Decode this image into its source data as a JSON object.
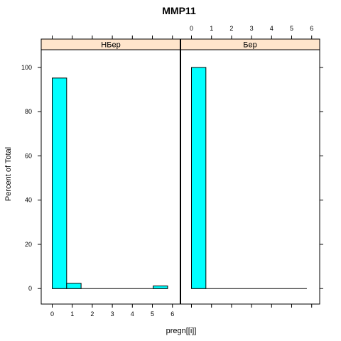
{
  "chart_data": {
    "type": "bar",
    "title": "MMP11",
    "xlabel": "pregn[[i]]",
    "ylabel": "Percent of Total",
    "xlim": [
      -0.55,
      6.4
    ],
    "ylim": [
      -7,
      108
    ],
    "x_ticks": [
      0,
      1,
      2,
      3,
      4,
      5,
      6
    ],
    "y_ticks": [
      0,
      20,
      40,
      60,
      80,
      100
    ],
    "bin_width": 0.72,
    "panels": [
      {
        "name": "НБер",
        "bins": [
          {
            "x": 0.0,
            "value": 95.2
          },
          {
            "x": 0.72,
            "value": 2.4
          },
          {
            "x": 1.44,
            "value": 0
          },
          {
            "x": 2.16,
            "value": 0
          },
          {
            "x": 2.88,
            "value": 0
          },
          {
            "x": 3.6,
            "value": 0
          },
          {
            "x": 4.32,
            "value": 0
          },
          {
            "x": 5.04,
            "value": 1.2
          }
        ]
      },
      {
        "name": "Бер",
        "bins": [
          {
            "x": 0.0,
            "value": 100
          },
          {
            "x": 0.72,
            "value": 0
          },
          {
            "x": 1.44,
            "value": 0
          },
          {
            "x": 2.16,
            "value": 0
          },
          {
            "x": 2.88,
            "value": 0
          },
          {
            "x": 3.6,
            "value": 0
          },
          {
            "x": 4.32,
            "value": 0
          },
          {
            "x": 5.04,
            "value": 0
          }
        ]
      }
    ],
    "bar_color": "#00FFFF",
    "strip_color": "#FFE5CC",
    "grid": false
  }
}
